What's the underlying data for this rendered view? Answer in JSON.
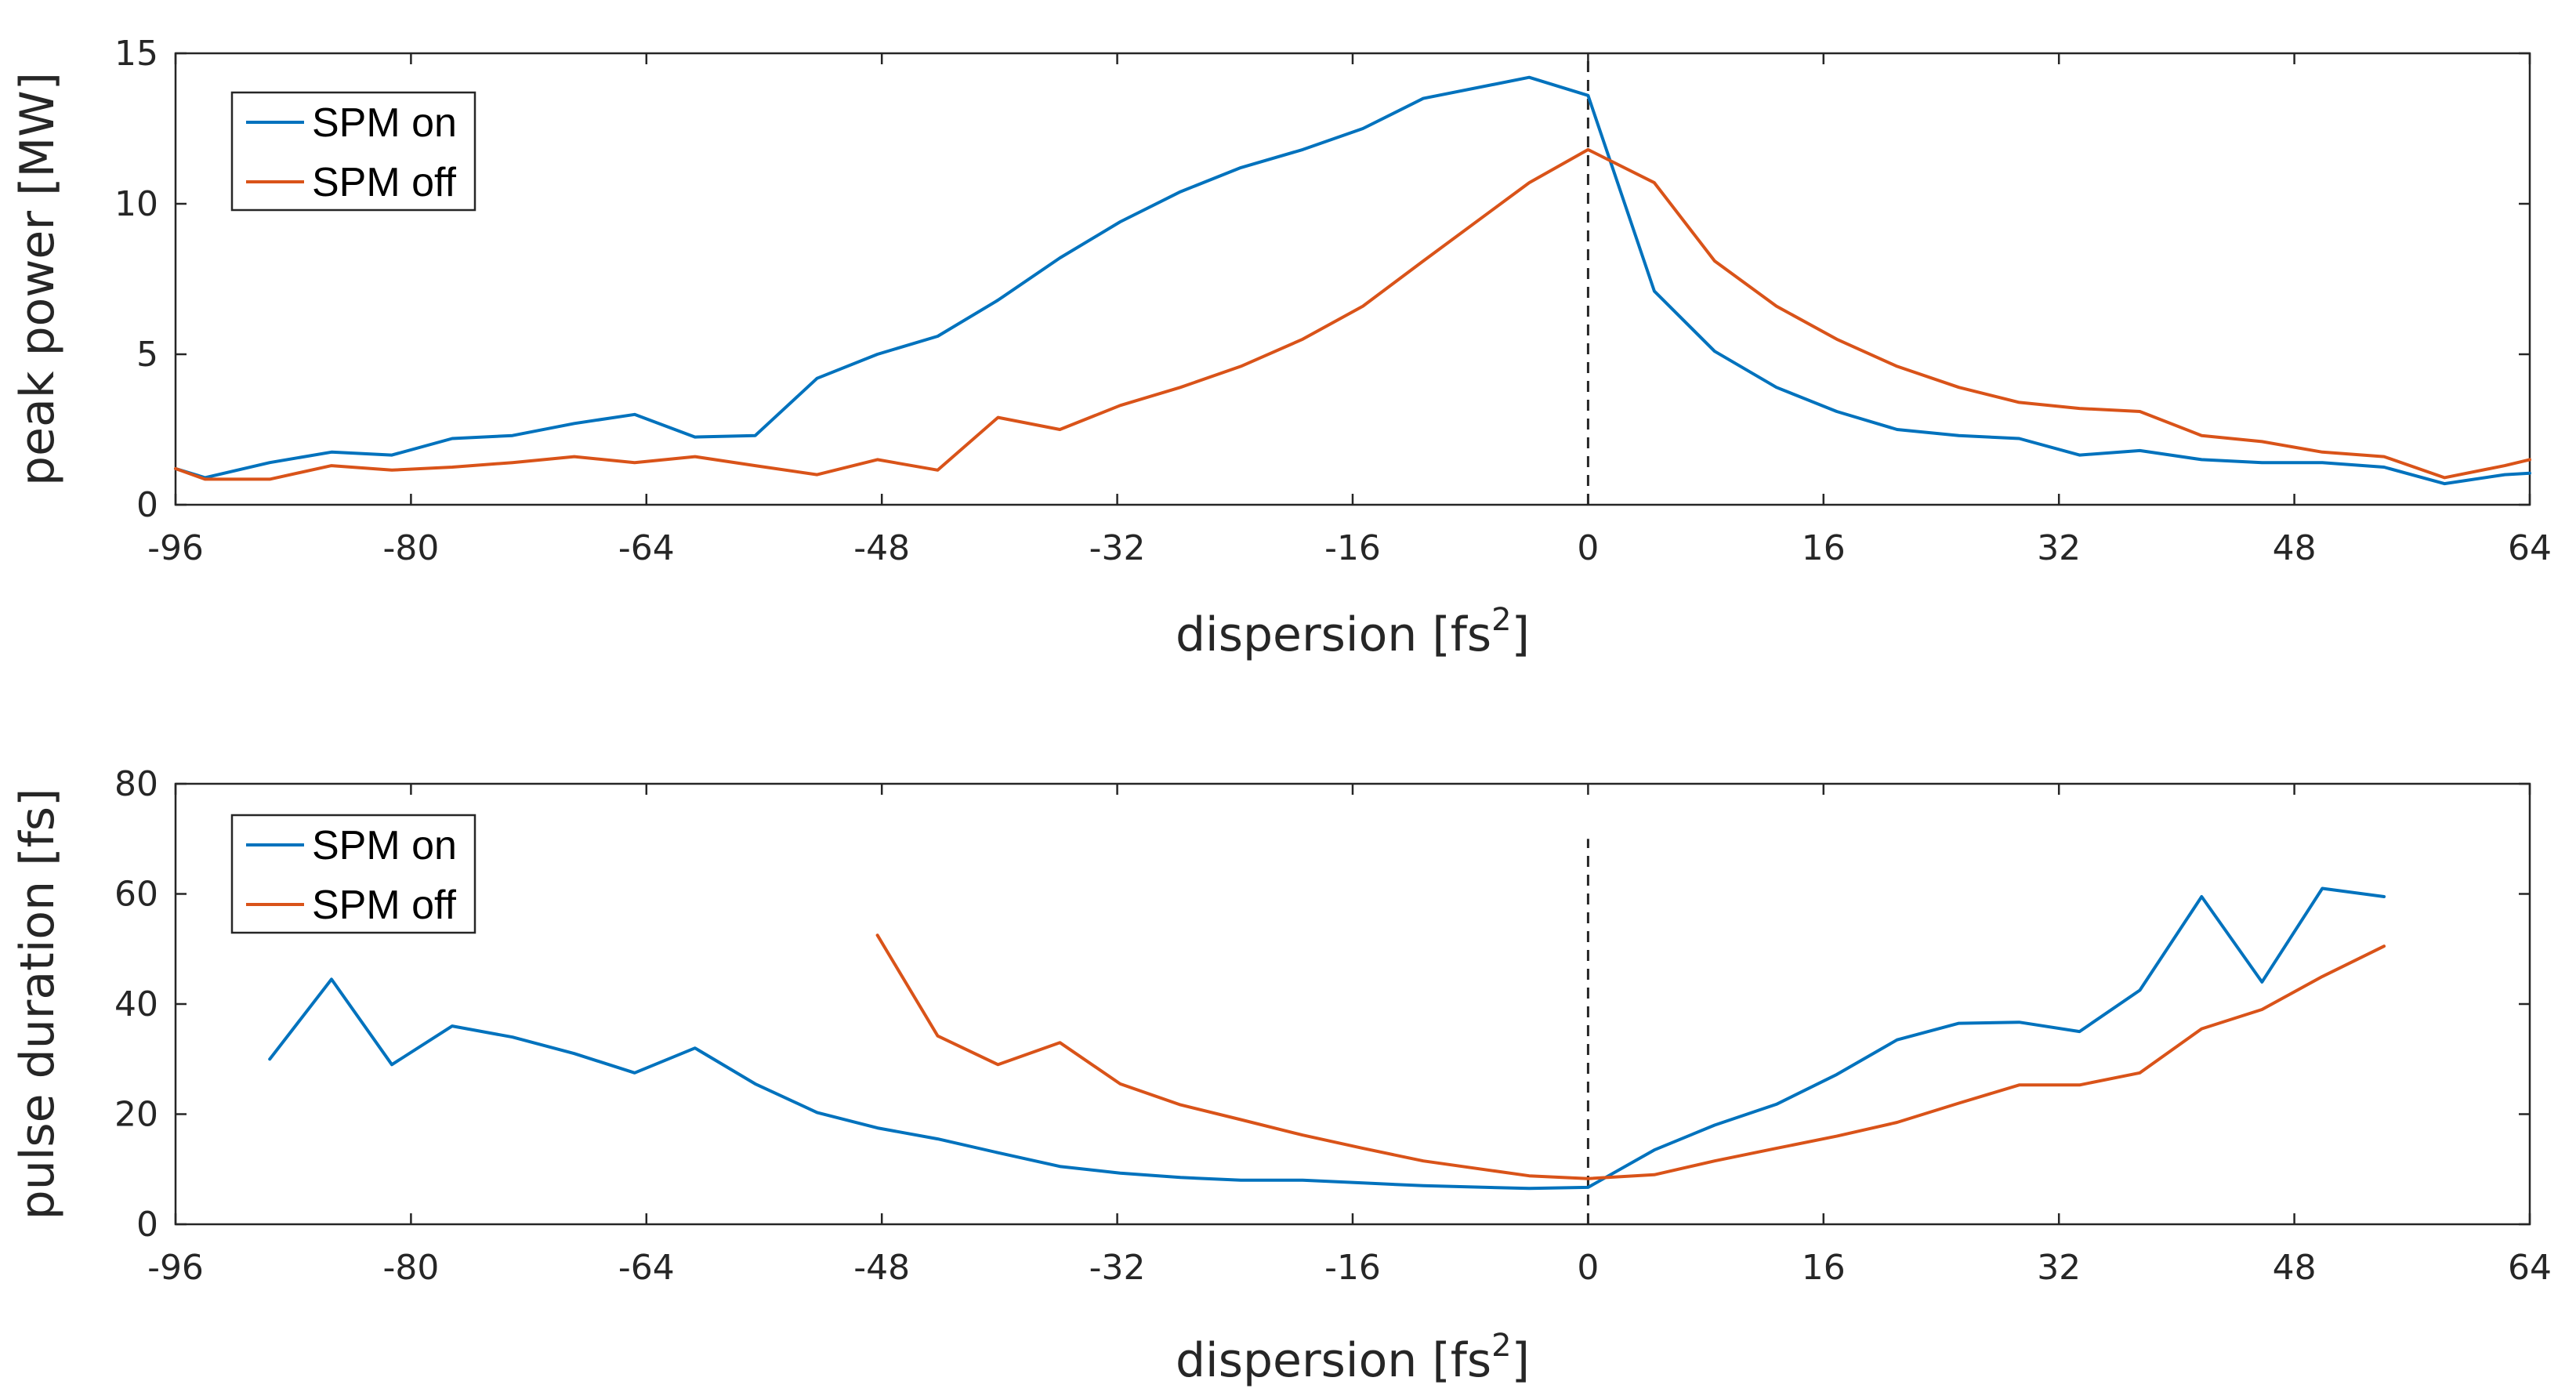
{
  "chart_data": [
    {
      "type": "line",
      "id": "peak-power",
      "xlabel": "dispersion [fs",
      "xlabel_sup": "2",
      "xlabel_end": "]",
      "ylabel": "peak power [MW]",
      "xlim": [
        -96,
        64
      ],
      "ylim": [
        0,
        15
      ],
      "xticks": [
        -96,
        -80,
        -64,
        -48,
        -32,
        -16,
        0,
        16,
        32,
        48,
        64
      ],
      "yticks": [
        0,
        5,
        10,
        15
      ],
      "vline_x": 0,
      "vline_range": [
        0,
        15
      ],
      "legend_position": "top-left",
      "series": [
        {
          "name": "SPM on",
          "color": "#0072BD",
          "points": [
            [
              -96,
              1.2
            ],
            [
              -94,
              0.9
            ],
            [
              -89.6,
              1.4
            ],
            [
              -85.4,
              1.75
            ],
            [
              -81.3,
              1.65
            ],
            [
              -77.2,
              2.2
            ],
            [
              -73.1,
              2.3
            ],
            [
              -68.9,
              2.7
            ],
            [
              -64.8,
              3.0
            ],
            [
              -60.7,
              2.25
            ],
            [
              -56.6,
              2.3
            ],
            [
              -52.4,
              4.2
            ],
            [
              -48.3,
              5.0
            ],
            [
              -44.2,
              5.6
            ],
            [
              -40.1,
              6.8
            ],
            [
              -35.9,
              8.2
            ],
            [
              -31.8,
              9.4
            ],
            [
              -27.7,
              10.4
            ],
            [
              -23.6,
              11.2
            ],
            [
              -19.4,
              11.8
            ],
            [
              -15.3,
              12.5
            ],
            [
              -11.2,
              13.5
            ],
            [
              -4,
              14.2
            ],
            [
              0,
              13.6
            ],
            [
              4.5,
              7.1
            ],
            [
              8.6,
              5.1
            ],
            [
              12.8,
              3.9
            ],
            [
              16.9,
              3.1
            ],
            [
              21,
              2.5
            ],
            [
              25.2,
              2.3
            ],
            [
              29.3,
              2.2
            ],
            [
              33.4,
              1.65
            ],
            [
              37.5,
              1.8
            ],
            [
              41.7,
              1.5
            ],
            [
              45.8,
              1.4
            ],
            [
              49.9,
              1.4
            ],
            [
              54.1,
              1.25
            ],
            [
              58.2,
              0.7
            ],
            [
              62.3,
              1.0
            ],
            [
              64,
              1.05
            ]
          ]
        },
        {
          "name": "SPM off",
          "color": "#D95319",
          "points": [
            [
              -96,
              1.2
            ],
            [
              -94,
              0.85
            ],
            [
              -89.6,
              0.85
            ],
            [
              -85.4,
              1.3
            ],
            [
              -81.3,
              1.15
            ],
            [
              -77.2,
              1.25
            ],
            [
              -73.1,
              1.4
            ],
            [
              -68.9,
              1.6
            ],
            [
              -64.8,
              1.4
            ],
            [
              -60.7,
              1.6
            ],
            [
              -56.6,
              1.3
            ],
            [
              -52.4,
              1.0
            ],
            [
              -48.3,
              1.5
            ],
            [
              -44.2,
              1.15
            ],
            [
              -40.1,
              2.9
            ],
            [
              -35.9,
              2.5
            ],
            [
              -31.8,
              3.3
            ],
            [
              -27.7,
              3.9
            ],
            [
              -23.6,
              4.6
            ],
            [
              -19.4,
              5.5
            ],
            [
              -15.3,
              6.6
            ],
            [
              -11.2,
              8.1
            ],
            [
              -4,
              10.7
            ],
            [
              0,
              11.8
            ],
            [
              4.5,
              10.7
            ],
            [
              8.6,
              8.1
            ],
            [
              12.8,
              6.6
            ],
            [
              16.9,
              5.5
            ],
            [
              21,
              4.6
            ],
            [
              25.2,
              3.9
            ],
            [
              29.3,
              3.4
            ],
            [
              33.4,
              3.2
            ],
            [
              37.5,
              3.1
            ],
            [
              41.7,
              2.3
            ],
            [
              45.8,
              2.1
            ],
            [
              49.9,
              1.75
            ],
            [
              54.1,
              1.6
            ],
            [
              58.2,
              0.9
            ],
            [
              62.3,
              1.3
            ],
            [
              64,
              1.5
            ]
          ]
        }
      ]
    },
    {
      "type": "line",
      "id": "pulse-duration",
      "xlabel": "dispersion [fs",
      "xlabel_sup": "2",
      "xlabel_end": "]",
      "ylabel": "pulse duration [fs]",
      "xlim": [
        -96,
        64
      ],
      "ylim": [
        0,
        80
      ],
      "xticks": [
        -96,
        -80,
        -64,
        -48,
        -32,
        -16,
        0,
        16,
        32,
        48,
        64
      ],
      "yticks": [
        0,
        20,
        40,
        60,
        80
      ],
      "vline_x": 0,
      "vline_range": [
        0,
        70
      ],
      "legend_position": "top-left",
      "series": [
        {
          "name": "SPM on",
          "color": "#0072BD",
          "points": [
            [
              -89.6,
              30
            ],
            [
              -85.4,
              44.5
            ],
            [
              -81.3,
              29
            ],
            [
              -77.2,
              36
            ],
            [
              -73.1,
              34
            ],
            [
              -68.9,
              31
            ],
            [
              -64.8,
              27.5
            ],
            [
              -60.7,
              32
            ],
            [
              -56.6,
              25.5
            ],
            [
              -52.4,
              20.3
            ],
            [
              -48.3,
              17.5
            ],
            [
              -44.2,
              15.5
            ],
            [
              -40.1,
              13
            ],
            [
              -35.9,
              10.5
            ],
            [
              -31.8,
              9.3
            ],
            [
              -27.7,
              8.5
            ],
            [
              -23.6,
              8
            ],
            [
              -19.4,
              8
            ],
            [
              -15.3,
              7.5
            ],
            [
              -11.2,
              7
            ],
            [
              -4,
              6.5
            ],
            [
              0,
              6.7
            ],
            [
              4.5,
              13.5
            ],
            [
              8.6,
              18
            ],
            [
              12.8,
              21.8
            ],
            [
              16.9,
              27.2
            ],
            [
              21,
              33.5
            ],
            [
              25.2,
              36.5
            ],
            [
              29.3,
              36.7
            ],
            [
              33.4,
              35
            ],
            [
              37.5,
              42.5
            ],
            [
              41.7,
              59.5
            ],
            [
              45.8,
              44
            ],
            [
              49.9,
              61
            ],
            [
              54.1,
              59.5
            ]
          ]
        },
        {
          "name": "SPM off",
          "color": "#D95319",
          "points": [
            [
              -48.3,
              52.5
            ],
            [
              -44.2,
              34.2
            ],
            [
              -40.1,
              29
            ],
            [
              -35.9,
              33
            ],
            [
              -31.8,
              25.5
            ],
            [
              -27.7,
              21.7
            ],
            [
              -23.6,
              19
            ],
            [
              -19.4,
              16.2
            ],
            [
              -15.3,
              13.8
            ],
            [
              -11.2,
              11.5
            ],
            [
              -4,
              8.8
            ],
            [
              0,
              8.3
            ],
            [
              4.5,
              9
            ],
            [
              8.6,
              11.5
            ],
            [
              12.8,
              13.8
            ],
            [
              16.9,
              16
            ],
            [
              21,
              18.5
            ],
            [
              25.2,
              22
            ],
            [
              29.3,
              25.3
            ],
            [
              33.4,
              25.3
            ],
            [
              37.5,
              27.5
            ],
            [
              41.7,
              35.5
            ],
            [
              45.8,
              39
            ],
            [
              49.9,
              45
            ],
            [
              54.1,
              50.5
            ]
          ]
        }
      ]
    }
  ]
}
